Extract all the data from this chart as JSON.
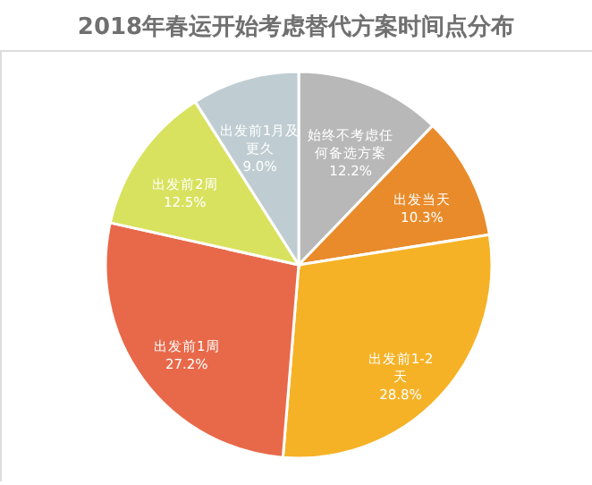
{
  "chart_data": {
    "type": "pie",
    "title": "2018年春运开始考虑替代方案时间点分布",
    "categories": [
      "始终不考虑任何备选方案",
      "出发当天",
      "出发前1-2天",
      "出发前1周",
      "出发前2周",
      "出发前1月及更久"
    ],
    "values": [
      12.2,
      10.3,
      28.8,
      27.2,
      12.5,
      9.0
    ],
    "value_labels": [
      "12.2%",
      "10.3%",
      "28.8%",
      "27.2%",
      "12.5%",
      "9.0%"
    ],
    "colors": [
      "#b8b8b8",
      "#e98b2a",
      "#f6b226",
      "#e8694a",
      "#d8e25e",
      "#bfcdd2"
    ],
    "legend": false
  }
}
